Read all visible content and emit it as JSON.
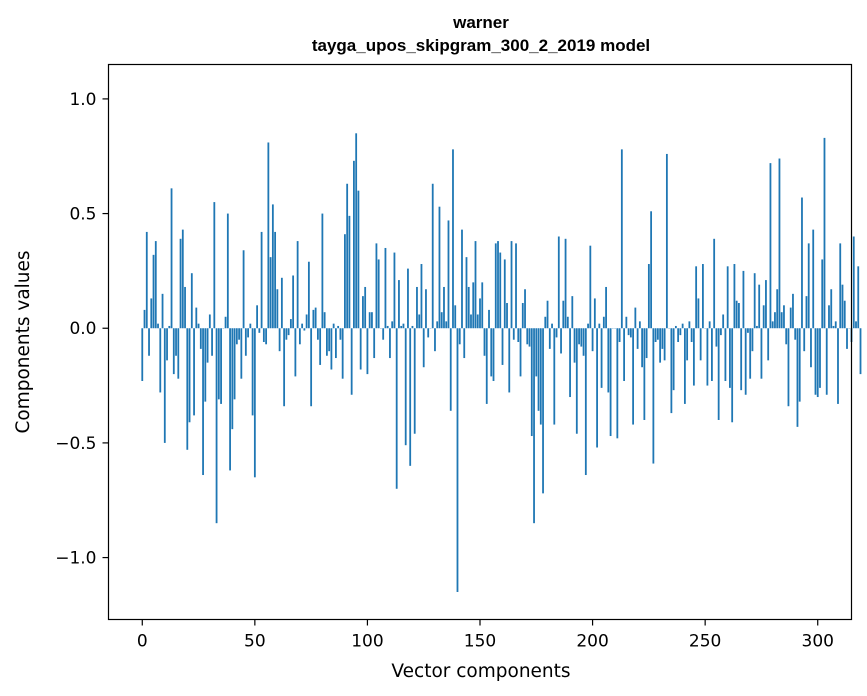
{
  "chart_data": {
    "type": "bar",
    "title": "warner",
    "subtitle": "tayga_upos_skipgram_300_2_2019 model",
    "xlabel": "Vector components",
    "ylabel": "Components values",
    "xlim": [
      -15,
      315
    ],
    "ylim": [
      -1.27,
      1.15
    ],
    "xticks": [
      0,
      50,
      100,
      150,
      200,
      250,
      300
    ],
    "xtick_labels": [
      "0",
      "50",
      "100",
      "150",
      "200",
      "250",
      "300"
    ],
    "yticks": [
      -1.0,
      -0.5,
      0.0,
      0.5,
      1.0
    ],
    "ytick_labels": [
      "−1.0",
      "−0.5",
      "0.0",
      "0.5",
      "1.0"
    ],
    "grid": false,
    "bar_color": "#1f77b4",
    "values": [
      -0.23,
      0.08,
      0.42,
      -0.12,
      0.13,
      0.32,
      0.38,
      0.02,
      -0.28,
      0.15,
      -0.5,
      -0.14,
      0.01,
      0.61,
      -0.2,
      -0.12,
      -0.22,
      0.39,
      0.43,
      0.18,
      -0.53,
      -0.41,
      0.24,
      -0.38,
      0.09,
      0.02,
      -0.09,
      -0.64,
      -0.32,
      -0.15,
      0.06,
      -0.12,
      0.55,
      -0.85,
      -0.31,
      -0.33,
      0.0,
      0.05,
      0.5,
      -0.62,
      -0.44,
      -0.31,
      -0.07,
      -0.05,
      -0.22,
      0.34,
      -0.12,
      -0.04,
      0.02,
      -0.38,
      -0.65,
      0.1,
      -0.02,
      0.42,
      -0.06,
      -0.07,
      0.81,
      0.31,
      0.54,
      0.42,
      0.17,
      -0.1,
      0.22,
      -0.34,
      -0.05,
      -0.03,
      0.04,
      0.23,
      -0.21,
      0.38,
      -0.07,
      0.02,
      -0.01,
      0.06,
      0.29,
      -0.34,
      0.08,
      0.09,
      -0.05,
      -0.16,
      0.5,
      0.07,
      -0.12,
      -0.1,
      -0.18,
      0.02,
      -0.13,
      0.01,
      -0.05,
      -0.22,
      0.41,
      0.63,
      0.49,
      -0.29,
      0.73,
      0.85,
      0.6,
      -0.18,
      0.14,
      0.18,
      -0.2,
      0.07,
      0.07,
      -0.13,
      0.37,
      0.3,
      0.0,
      -0.05,
      0.35,
      0.01,
      -0.13,
      0.03,
      0.33,
      -0.7,
      0.21,
      0.01,
      0.02,
      -0.51,
      0.26,
      -0.6,
      0.01,
      -0.46,
      0.18,
      0.06,
      0.28,
      -0.17,
      0.17,
      -0.04,
      0.0,
      0.63,
      -0.1,
      0.03,
      0.53,
      0.07,
      0.18,
      0.03,
      0.47,
      -0.36,
      0.78,
      0.1,
      -1.15,
      -0.07,
      0.43,
      -0.13,
      0.31,
      0.18,
      0.06,
      0.2,
      0.38,
      0.06,
      0.13,
      0.2,
      -0.12,
      -0.33,
      0.08,
      -0.21,
      -0.23,
      0.37,
      0.38,
      0.33,
      -0.16,
      0.3,
      0.11,
      -0.28,
      0.38,
      -0.05,
      0.37,
      -0.06,
      -0.21,
      0.11,
      0.17,
      -0.07,
      -0.08,
      -0.47,
      -0.85,
      -0.21,
      -0.36,
      -0.42,
      -0.72,
      0.05,
      0.12,
      -0.09,
      0.02,
      -0.42,
      -0.04,
      0.4,
      -0.11,
      0.12,
      0.39,
      0.05,
      -0.3,
      0.14,
      -0.15,
      -0.46,
      -0.07,
      -0.08,
      -0.12,
      -0.64,
      0.02,
      0.36,
      -0.1,
      0.13,
      -0.52,
      0.02,
      -0.26,
      0.05,
      0.18,
      -0.28,
      -0.47,
      0.0,
      0.0,
      -0.48,
      -0.06,
      0.78,
      -0.23,
      0.05,
      -0.03,
      -0.04,
      -0.42,
      0.09,
      -0.09,
      0.03,
      -0.17,
      -0.4,
      -0.13,
      0.28,
      0.51,
      -0.59,
      -0.06,
      -0.05,
      -0.15,
      -0.09,
      -0.14,
      0.76,
      0.0,
      -0.37,
      -0.27,
      0.01,
      -0.06,
      -0.03,
      0.02,
      -0.33,
      -0.14,
      0.03,
      -0.06,
      -0.25,
      0.27,
      0.13,
      -0.14,
      0.28,
      0.0,
      -0.25,
      0.03,
      -0.23,
      0.39,
      -0.08,
      -0.4,
      -0.03,
      0.06,
      -0.23,
      0.27,
      -0.26,
      -0.41,
      0.28,
      0.12,
      0.11,
      -0.27,
      0.25,
      -0.29,
      -0.02,
      -0.22,
      -0.1,
      0.24,
      0.01,
      0.19,
      -0.22,
      0.1,
      0.21,
      -0.14,
      0.72,
      0.03,
      0.07,
      0.17,
      0.74,
      0.07,
      0.1,
      -0.07,
      -0.34,
      0.09,
      0.15,
      -0.05,
      -0.43,
      -0.32,
      0.57,
      -0.1,
      0.14,
      0.37,
      -0.17,
      0.43,
      -0.29,
      -0.3,
      -0.26,
      0.3,
      0.83,
      -0.29,
      0.1,
      0.17,
      0.01,
      0.03,
      -0.33,
      0.37,
      0.19,
      0.12,
      -0.09,
      0.0,
      -0.06,
      0.4,
      0.03,
      0.27,
      -0.2
    ]
  }
}
